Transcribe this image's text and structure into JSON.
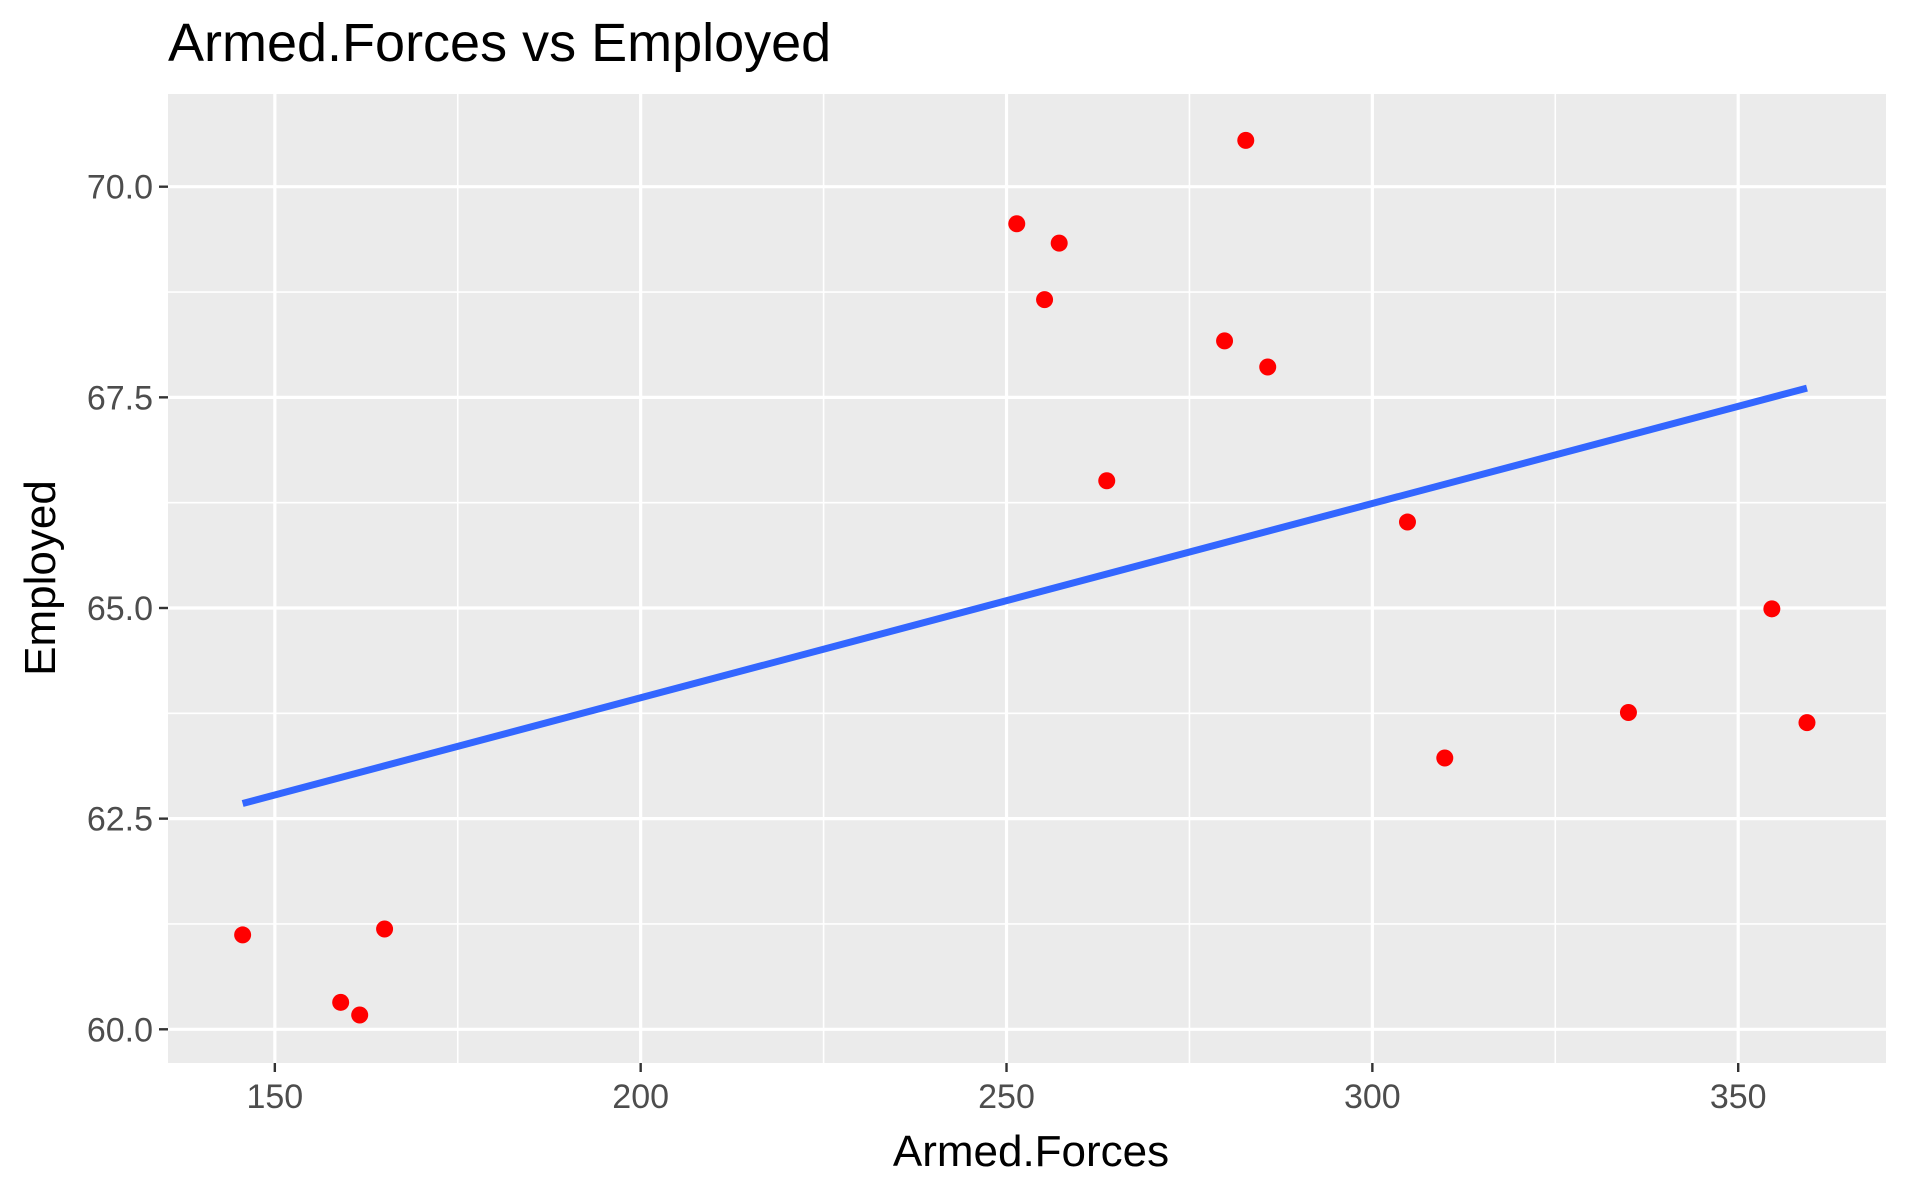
{
  "chart_data": {
    "type": "scatter",
    "title": "Armed.Forces vs Employed",
    "xlabel": "Armed.Forces",
    "ylabel": "Employed",
    "xlim": [
      135.4,
      370.2
    ],
    "ylim": [
      59.6,
      71.1
    ],
    "xticks": [
      150,
      200,
      250,
      300,
      350
    ],
    "xtick_labels": [
      "150",
      "200",
      "250",
      "300",
      "350"
    ],
    "yticks": [
      60.0,
      62.5,
      65.0,
      67.5,
      70.0
    ],
    "ytick_labels": [
      "60.0",
      "62.5",
      "65.0",
      "67.5",
      "70.0"
    ],
    "x_minor": [
      175,
      225,
      275,
      325
    ],
    "y_minor": [
      61.25,
      63.75,
      66.25,
      68.75
    ],
    "grid": true,
    "legend": "none",
    "series": [
      {
        "kind": "points",
        "color": "#ff0000",
        "x": [
          145.6,
          159.0,
          161.6,
          165.0,
          251.4,
          257.2,
          255.2,
          263.7,
          279.8,
          282.7,
          285.7,
          304.8,
          309.9,
          335.0,
          354.6,
          359.4
        ],
        "y": [
          61.12,
          60.32,
          60.17,
          61.19,
          69.56,
          69.33,
          68.66,
          66.51,
          68.17,
          70.55,
          67.86,
          66.02,
          63.22,
          63.76,
          64.99,
          63.64
        ]
      },
      {
        "kind": "fit-line",
        "color": "#3366ff",
        "x": [
          145.6,
          359.4
        ],
        "y": [
          62.68,
          67.61
        ]
      }
    ]
  }
}
